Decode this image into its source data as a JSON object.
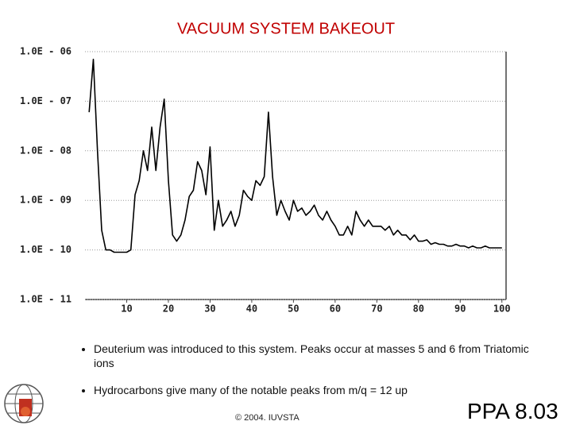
{
  "chart_data": {
    "type": "line",
    "title": "VACUUM SYSTEM BAKEOUT",
    "log_y": true,
    "grid": true,
    "color": "#000000",
    "xlim": [
      0,
      101
    ],
    "xticks": [
      10,
      20,
      30,
      40,
      50,
      60,
      70,
      80,
      90,
      100
    ],
    "ylim": [
      1e-11,
      1e-06
    ],
    "yticks": [
      {
        "value": 1e-11,
        "label": "1.0E - 11"
      },
      {
        "value": 1e-10,
        "label": "1.0E - 10"
      },
      {
        "value": 1e-09,
        "label": "1.0E - 09"
      },
      {
        "value": 1e-08,
        "label": "1.0E - 08"
      },
      {
        "value": 1e-07,
        "label": "1.0E - 07"
      },
      {
        "value": 1e-06,
        "label": "1.0E - 06"
      }
    ],
    "x": [
      1,
      2,
      3,
      4,
      5,
      6,
      7,
      8,
      9,
      10,
      11,
      12,
      13,
      14,
      15,
      16,
      17,
      18,
      19,
      20,
      21,
      22,
      23,
      24,
      25,
      26,
      27,
      28,
      29,
      30,
      31,
      32,
      33,
      34,
      35,
      36,
      37,
      38,
      39,
      40,
      41,
      42,
      43,
      44,
      45,
      46,
      47,
      48,
      49,
      50,
      51,
      52,
      53,
      54,
      55,
      56,
      57,
      58,
      59,
      60,
      61,
      62,
      63,
      64,
      65,
      66,
      67,
      68,
      69,
      70,
      71,
      72,
      73,
      74,
      75,
      76,
      77,
      78,
      79,
      80,
      81,
      82,
      83,
      84,
      85,
      86,
      87,
      88,
      89,
      90,
      91,
      92,
      93,
      94,
      95,
      96,
      97,
      98,
      99,
      100
    ],
    "values": [
      6e-08,
      7e-07,
      1e-08,
      2.5e-10,
      1e-10,
      1e-10,
      9e-11,
      9e-11,
      9e-11,
      9e-11,
      1e-10,
      1.3e-09,
      2.5e-09,
      1e-08,
      4e-09,
      3e-08,
      4e-09,
      3e-08,
      1.1e-07,
      2.5e-09,
      2e-10,
      1.5e-10,
      2e-10,
      4e-10,
      1.2e-09,
      1.6e-09,
      6e-09,
      4e-09,
      1.3e-09,
      1.2e-08,
      2.5e-10,
      1e-09,
      3e-10,
      4e-10,
      6e-10,
      3e-10,
      5e-10,
      1.6e-09,
      1.2e-09,
      1e-09,
      2.5e-09,
      2e-09,
      3e-09,
      6e-08,
      3e-09,
      5e-10,
      1e-09,
      6e-10,
      4e-10,
      1e-09,
      6e-10,
      7e-10,
      5e-10,
      6e-10,
      8e-10,
      5e-10,
      4e-10,
      6e-10,
      4e-10,
      3e-10,
      2e-10,
      2e-10,
      3e-10,
      2e-10,
      6e-10,
      4e-10,
      3e-10,
      4e-10,
      3e-10,
      3e-10,
      3e-10,
      2.5e-10,
      3e-10,
      2e-10,
      2.5e-10,
      2e-10,
      2e-10,
      1.6e-10,
      2e-10,
      1.5e-10,
      1.5e-10,
      1.6e-10,
      1.3e-10,
      1.4e-10,
      1.3e-10,
      1.3e-10,
      1.2e-10,
      1.2e-10,
      1.3e-10,
      1.2e-10,
      1.2e-10,
      1.1e-10,
      1.2e-10,
      1.1e-10,
      1.1e-10,
      1.2e-10,
      1.1e-10,
      1.1e-10,
      1.1e-10,
      1.1e-10
    ]
  },
  "bullets": [
    "Deuterium was introduced to this system.  Peaks occur at masses 5 and 6 from Triatomic ions",
    "Hydrocarbons give many of the notable peaks from m/q = 12 up"
  ],
  "footer": {
    "copyright": "© 2004. IUVSTA",
    "slide_id": "PPA 8.03"
  }
}
